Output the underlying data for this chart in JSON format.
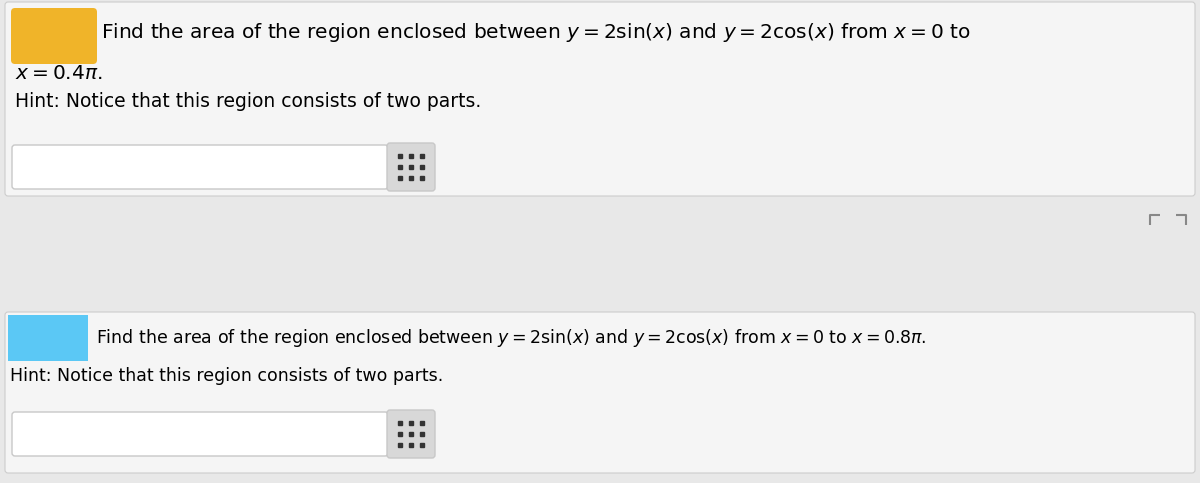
{
  "bg_color": "#e8e8e8",
  "panel1_bg": "#f5f5f5",
  "panel2_bg": "#f5f5f5",
  "badge1_color": "#f0b429",
  "badge2_color": "#5bc8f5",
  "text1_line1": "Find the area of the region enclosed between $y = 2\\sin(x)$ and $y = 2\\cos(x)$ from $x = 0$ to",
  "text1_line2": "$x = 0.4\\pi$.",
  "text1_hint": "Hint: Notice that this region consists of two parts.",
  "text2_line1": "Find the area of the region enclosed between $y = 2\\sin(x)$ and $y = 2\\cos(x)$ from $x = 0$ to $x = 0.8\\pi$.",
  "text2_hint": "Hint: Notice that this region consists of two parts.",
  "font_size_main": 14.5,
  "font_size_hint": 13.5,
  "font_size_panel2": 12.5,
  "input_box_color": "#ffffff",
  "input_box_border": "#c8c8c8",
  "grid_icon_color": "#333333",
  "grid_icon_bg": "#d8d8d8",
  "expand_icon_color": "#888888"
}
